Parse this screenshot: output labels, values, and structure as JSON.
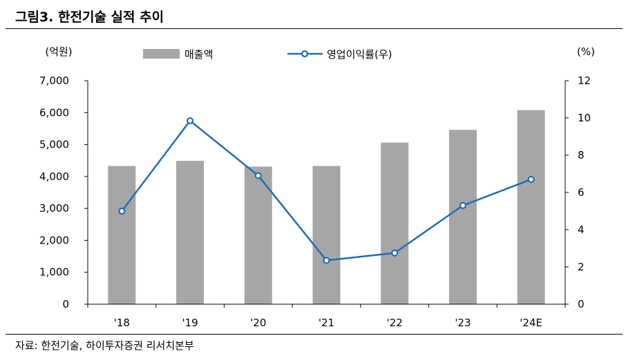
{
  "header": {
    "title": "그림3.   한전기술 실적 추이"
  },
  "footer": {
    "source": "자료: 한전기술, 하이투자증권 리서치본부"
  },
  "chart_data": {
    "type": "bar+line",
    "categories": [
      "'18",
      "'19",
      "'20",
      "'21",
      "'22",
      "'23",
      "'24E"
    ],
    "series": [
      {
        "name": "매출액",
        "axis": "left",
        "kind": "bar",
        "color": "#a6a6a6",
        "values": [
          4330,
          4490,
          4310,
          4330,
          5060,
          5460,
          6080
        ]
      },
      {
        "name": "영업이익률(우)",
        "axis": "right",
        "kind": "line",
        "color": "#1f6db5",
        "values": [
          5.0,
          9.85,
          6.9,
          2.35,
          2.75,
          5.3,
          6.7
        ]
      }
    ],
    "left_axis": {
      "label": "(억원)",
      "ylim": [
        0,
        7000
      ],
      "ticks": [
        0,
        1000,
        2000,
        3000,
        4000,
        5000,
        6000,
        7000
      ],
      "tick_labels": [
        "0",
        "1,000",
        "2,000",
        "3,000",
        "4,000",
        "5,000",
        "6,000",
        "7,000"
      ]
    },
    "right_axis": {
      "label": "(%)",
      "ylim": [
        0,
        12
      ],
      "ticks": [
        0,
        2,
        4,
        6,
        8,
        10,
        12
      ],
      "tick_labels": [
        "0",
        "2",
        "4",
        "6",
        "8",
        "10",
        "12"
      ]
    },
    "legend": {
      "position": "top"
    },
    "grid": false
  }
}
